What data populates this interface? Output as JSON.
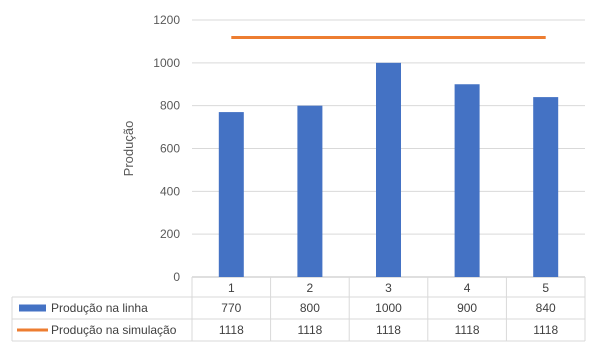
{
  "chart_data": {
    "type": "bar",
    "title": "",
    "xlabel": "",
    "ylabel": "Produção",
    "ylim": [
      0,
      1200
    ],
    "yticks": [
      0,
      200,
      400,
      600,
      800,
      1000,
      1200
    ],
    "grid": true,
    "legend": "data-table",
    "categories": [
      "1",
      "2",
      "3",
      "4",
      "5"
    ],
    "series": [
      {
        "name": "Produção na linha",
        "kind": "bar",
        "color": "#4472C4",
        "values": [
          770,
          800,
          1000,
          900,
          840
        ],
        "labels": [
          "770",
          "800",
          "1000",
          "900",
          "840"
        ]
      },
      {
        "name": "Produção na simulação",
        "kind": "line",
        "color": "#ED7D31",
        "values": [
          1118,
          1118,
          1118,
          1118,
          1118
        ],
        "labels": [
          "1118",
          "1118",
          "1118",
          "1118",
          "1118"
        ]
      }
    ]
  }
}
